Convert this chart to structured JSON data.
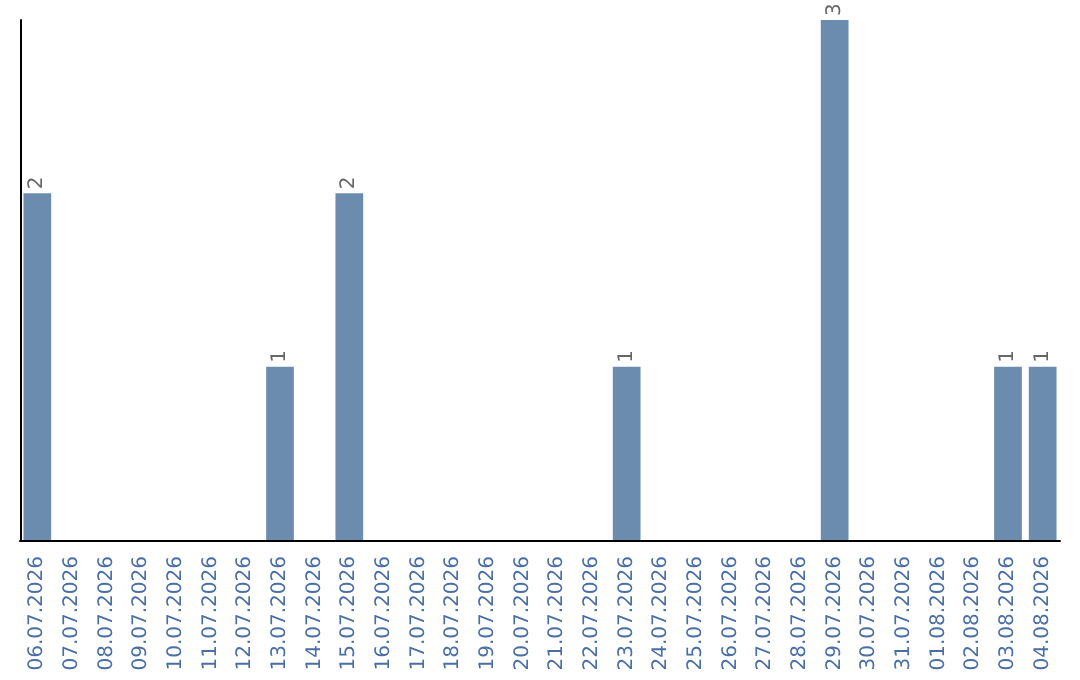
{
  "chart_data": {
    "type": "bar",
    "categories": [
      "06.07.2026",
      "07.07.2026",
      "08.07.2026",
      "09.07.2026",
      "10.07.2026",
      "11.07.2026",
      "12.07.2026",
      "13.07.2026",
      "14.07.2026",
      "15.07.2026",
      "16.07.2026",
      "17.07.2026",
      "18.07.2026",
      "19.07.2026",
      "20.07.2026",
      "21.07.2026",
      "22.07.2026",
      "23.07.2026",
      "24.07.2026",
      "25.07.2026",
      "26.07.2026",
      "27.07.2026",
      "28.07.2026",
      "29.07.2026",
      "30.07.2026",
      "31.07.2026",
      "01.08.2026",
      "02.08.2026",
      "03.08.2026",
      "04.08.2026"
    ],
    "values": [
      2,
      0,
      0,
      0,
      0,
      0,
      0,
      1,
      0,
      2,
      0,
      0,
      0,
      0,
      0,
      0,
      0,
      1,
      0,
      0,
      0,
      0,
      0,
      3,
      0,
      0,
      0,
      0,
      1,
      1
    ],
    "color": "#6b8cae",
    "value_labels": [
      "2",
      null,
      null,
      null,
      null,
      null,
      null,
      "1",
      null,
      "2",
      null,
      null,
      null,
      null,
      null,
      null,
      null,
      "1",
      null,
      null,
      null,
      null,
      null,
      "3",
      null,
      null,
      null,
      null,
      "1",
      "1"
    ],
    "tick_labels": "x",
    "grid": false
  }
}
